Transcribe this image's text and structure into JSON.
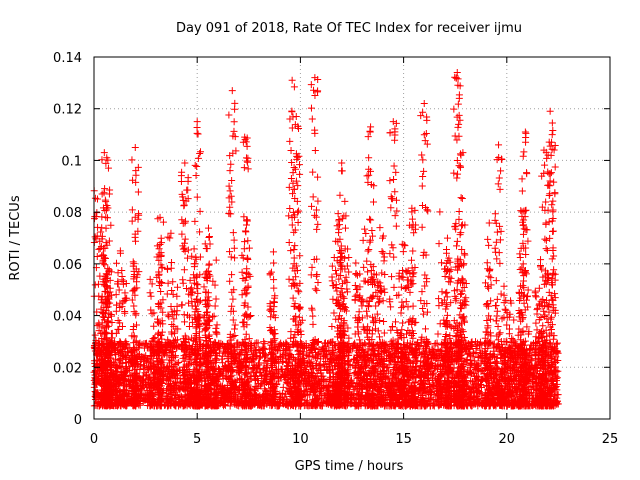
{
  "chart_data": {
    "type": "scatter",
    "title": "Day 091 of 2018, Rate Of TEC Index for receiver ijmu",
    "xlabel": "GPS time / hours",
    "ylabel": "ROTI / TECUs",
    "xlim": [
      0,
      25
    ],
    "ylim": [
      0,
      0.14
    ],
    "x_ticks": [
      "0",
      "5",
      "10",
      "15",
      "20",
      "25"
    ],
    "y_ticks": [
      "0",
      "0.02",
      "0.04",
      "0.06",
      "0.08",
      "0.1",
      "0.12",
      "0.14"
    ],
    "x_tick_values": [
      0,
      5,
      10,
      15,
      20,
      25
    ],
    "y_tick_values": [
      0,
      0.02,
      0.04,
      0.06,
      0.08,
      0.1,
      0.12,
      0.14
    ],
    "grid": true,
    "marker": "+",
    "marker_color": "#ff0000",
    "data_x_range": [
      0,
      22.5
    ],
    "baseline_band": [
      0.005,
      0.03
    ],
    "series": [
      {
        "name": "ROTI",
        "representative_points": [
          {
            "x": 0.5,
            "y": 0.103
          },
          {
            "x": 0.7,
            "y": 0.097
          },
          {
            "x": 2.0,
            "y": 0.105
          },
          {
            "x": 3.2,
            "y": 0.078
          },
          {
            "x": 4.4,
            "y": 0.099
          },
          {
            "x": 5.0,
            "y": 0.115
          },
          {
            "x": 6.7,
            "y": 0.127
          },
          {
            "x": 7.3,
            "y": 0.109
          },
          {
            "x": 9.6,
            "y": 0.131
          },
          {
            "x": 9.8,
            "y": 0.117
          },
          {
            "x": 10.7,
            "y": 0.132
          },
          {
            "x": 12.0,
            "y": 0.099
          },
          {
            "x": 13.4,
            "y": 0.113
          },
          {
            "x": 14.5,
            "y": 0.115
          },
          {
            "x": 16.0,
            "y": 0.122
          },
          {
            "x": 17.6,
            "y": 0.134
          },
          {
            "x": 17.7,
            "y": 0.124
          },
          {
            "x": 19.6,
            "y": 0.106
          },
          {
            "x": 20.9,
            "y": 0.111
          },
          {
            "x": 21.8,
            "y": 0.104
          },
          {
            "x": 22.1,
            "y": 0.119
          },
          {
            "x": 22.2,
            "y": 0.11
          }
        ]
      }
    ]
  }
}
